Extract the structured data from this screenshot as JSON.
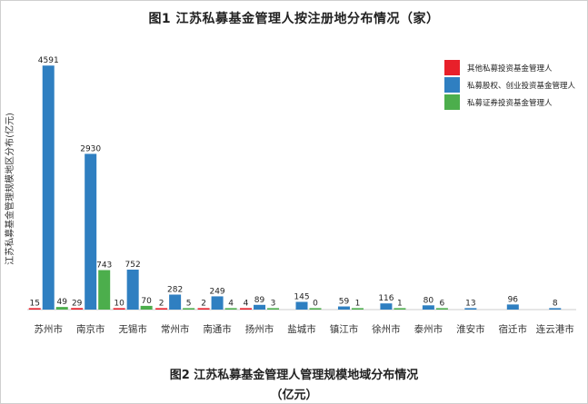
{
  "chart_data": {
    "type": "bar",
    "title": "图1 江苏私募基金管理人按注册地分布情况（家）",
    "ylabel": "江苏私募基金管理规模地区分布(亿元)",
    "xlabel": "",
    "categories": [
      "苏州市",
      "南京市",
      "无锡市",
      "常州市",
      "南通市",
      "扬州市",
      "盐城市",
      "镇江市",
      "徐州市",
      "泰州市",
      "淮安市",
      "宿迁市",
      "连云港市"
    ],
    "series": [
      {
        "name": "其他私募投资基金管理人",
        "color": "#e8202a",
        "values": [
          15,
          29,
          10,
          2,
          2,
          4,
          null,
          null,
          null,
          null,
          null,
          null,
          null
        ]
      },
      {
        "name": "私募股权、创业投资基金管理人",
        "color": "#2f7fc1",
        "values": [
          4591,
          2930,
          752,
          282,
          249,
          89,
          145,
          59,
          116,
          80,
          13,
          96,
          8
        ]
      },
      {
        "name": "私募证券投资基金管理人",
        "color": "#4cae4c",
        "values": [
          49,
          743,
          70,
          5,
          4,
          3,
          0,
          1,
          1,
          6,
          null,
          null,
          null
        ]
      }
    ],
    "ylim": [
      0,
      4800
    ],
    "legend_position": "top-right",
    "grid": false
  },
  "caption": {
    "line1": "图2 江苏私募基金管理人管理规模地域分布情况",
    "line2": "（亿元）"
  }
}
